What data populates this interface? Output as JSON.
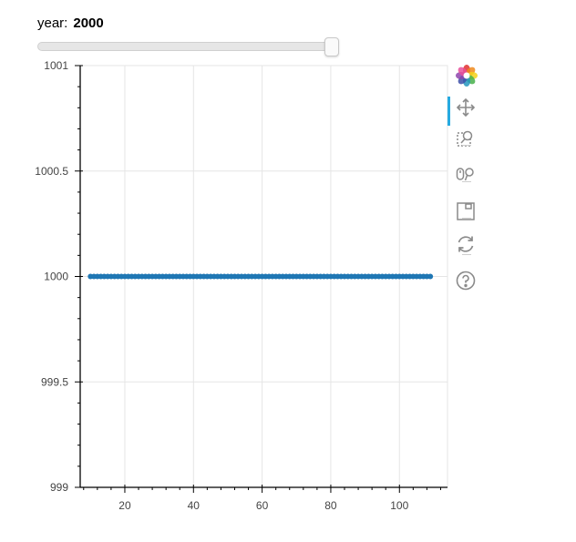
{
  "slider": {
    "title": "year:",
    "value": "2000",
    "fraction": 1.0
  },
  "toolbar": {
    "tools": [
      {
        "name": "bokeh-logo-icon",
        "active": false
      },
      {
        "name": "pan-icon",
        "active": true
      },
      {
        "name": "box-zoom-icon",
        "active": false
      },
      {
        "name": "wheel-zoom-icon",
        "active": false
      },
      {
        "name": "save-icon",
        "active": false
      },
      {
        "name": "reset-icon",
        "active": false
      },
      {
        "name": "help-icon",
        "active": false
      }
    ]
  },
  "colors": {
    "series": "#1f77b4",
    "grid": "#e5e5e5",
    "axis": "#444444"
  },
  "chart_data": {
    "type": "scatter",
    "title": "",
    "xlabel": "",
    "ylabel": "",
    "xlim": [
      7,
      114
    ],
    "ylim": [
      999,
      1001
    ],
    "xticks": [
      20,
      40,
      60,
      80,
      100
    ],
    "xtick_labels": [
      "20",
      "40",
      "60",
      "80",
      "100"
    ],
    "yticks": [
      999,
      999.5,
      1000,
      1000.5,
      1001
    ],
    "ytick_labels": [
      "999",
      "999.5",
      "1000",
      "1000.5",
      "1001"
    ],
    "grid": true,
    "series": [
      {
        "x_start": 10,
        "x_end": 109,
        "x_step": 1,
        "y": 1000
      }
    ]
  }
}
